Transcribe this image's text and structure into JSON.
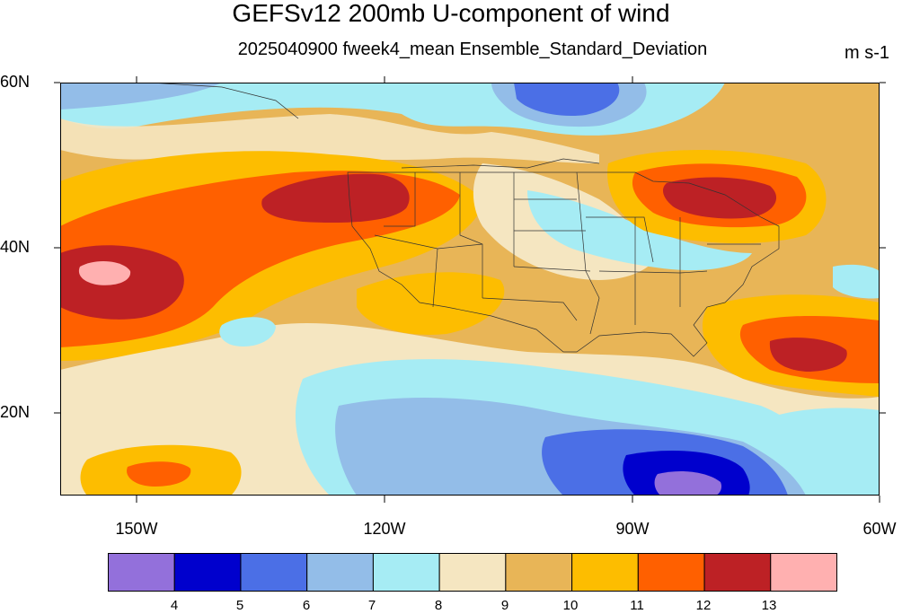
{
  "title": "GEFSv12 200mb U-component of wind",
  "subtitle": "2025040900 fweek4_mean Ensemble_Standard_Deviation",
  "units": "m s-1",
  "lat_labels": [
    "60N",
    "40N",
    "20N"
  ],
  "lon_labels": [
    "150W",
    "120W",
    "90W",
    "60W"
  ],
  "colorbar": {
    "colors": [
      "#9370db",
      "#0000cd",
      "#4b6fe6",
      "#93bde8",
      "#a6ecf4",
      "#f5e6c1",
      "#e8b557",
      "#fdbd00",
      "#ff6000",
      "#bd2125",
      "#ffb0b0"
    ],
    "labels": [
      "4",
      "5",
      "6",
      "7",
      "8",
      "9",
      "10",
      "11",
      "12",
      "13"
    ]
  },
  "map": {
    "region": "North Pacific and North America",
    "lat_range": [
      10,
      60
    ],
    "lon_range": [
      -160,
      -60
    ],
    "features": [
      "U.S. state boundaries",
      "coastlines"
    ]
  }
}
